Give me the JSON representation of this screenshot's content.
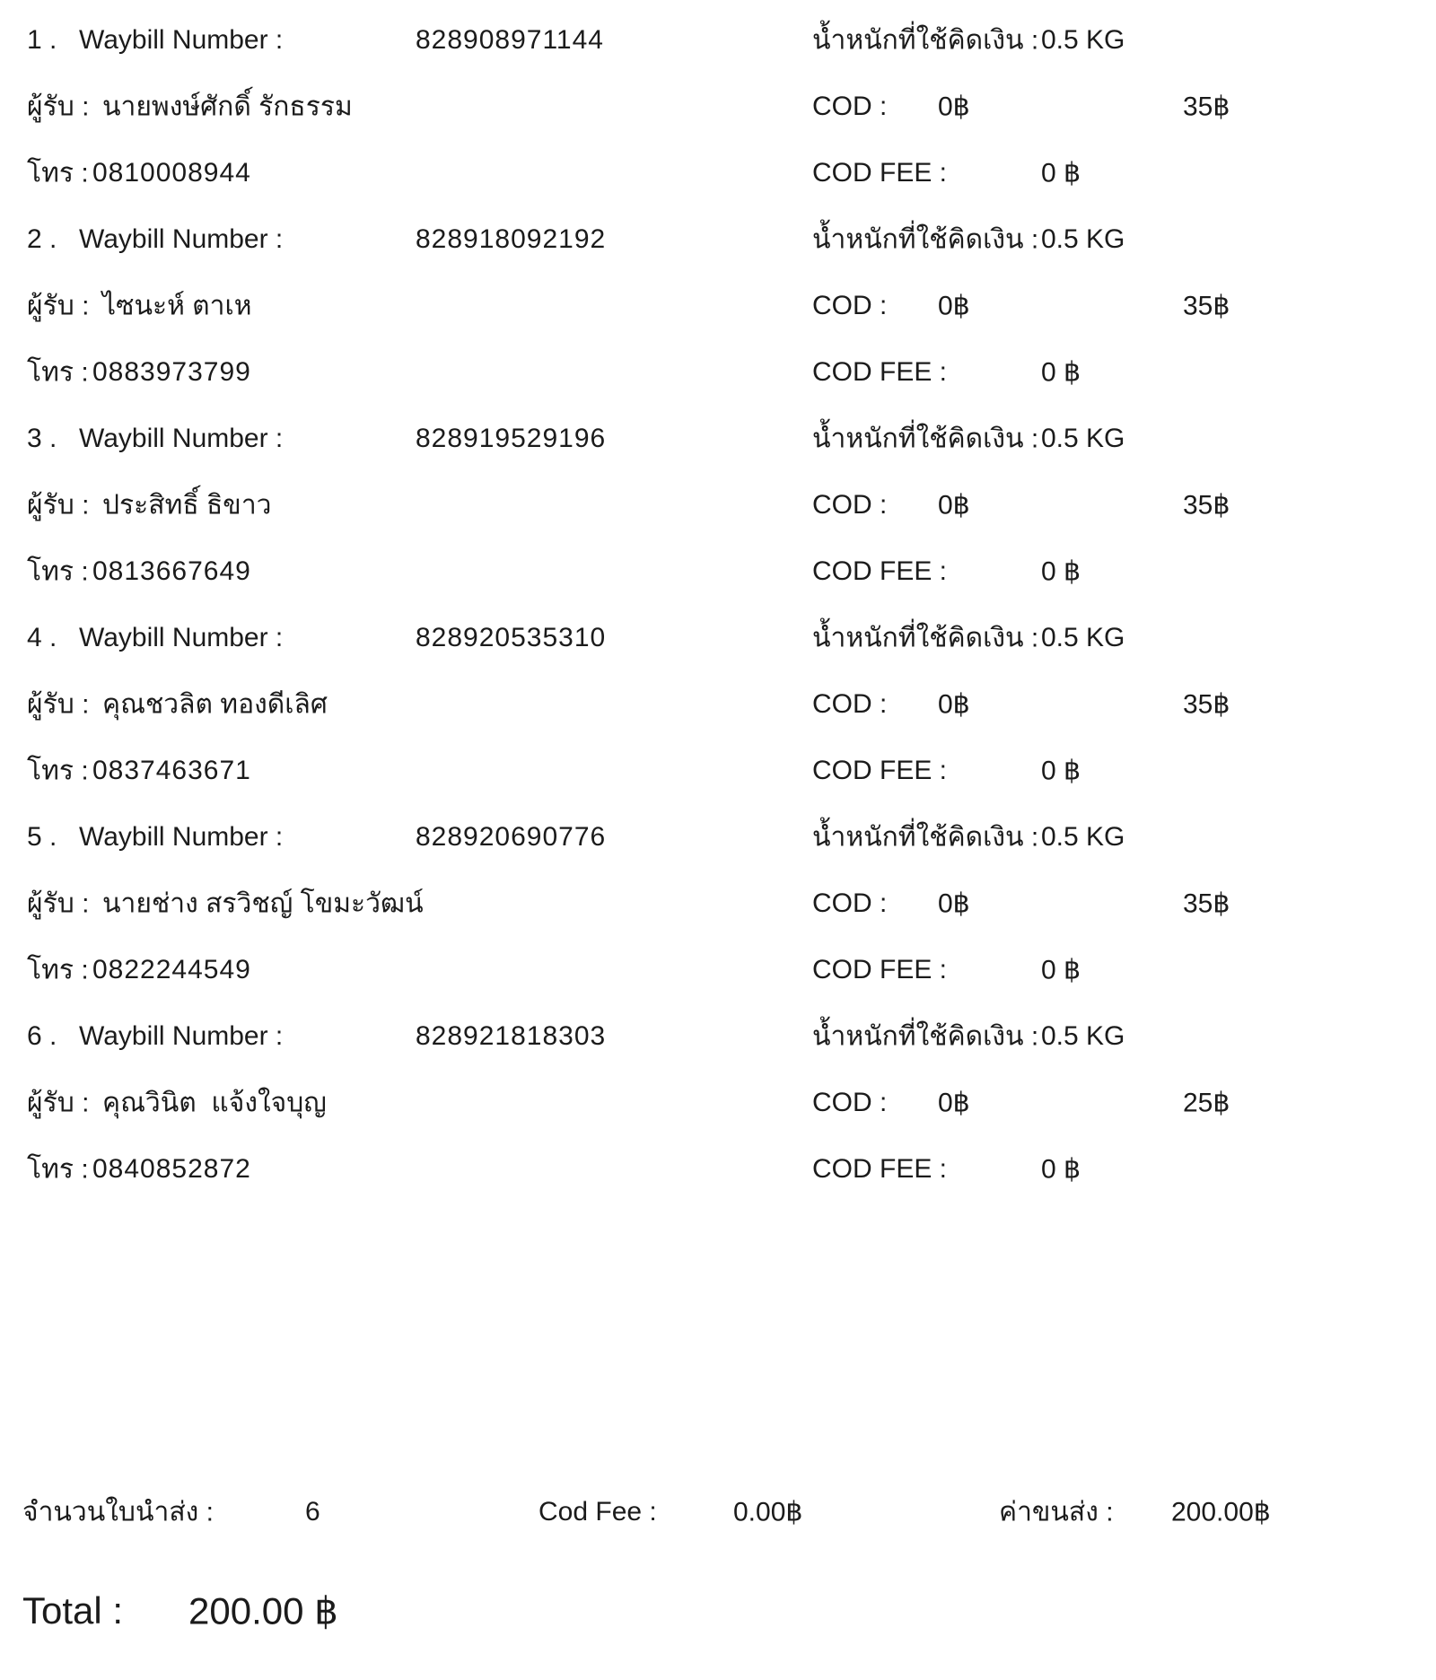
{
  "document": {
    "labels": {
      "waybill": "Waybill Number :",
      "weight": "น้ำหนักที่ใช้คิดเงิน :",
      "recipient": "ผู้รับ :",
      "cod": "COD :",
      "phone": "โทร :",
      "cod_fee": "COD FEE :"
    },
    "entries": [
      {
        "no": "1 .",
        "waybill_number": "828908971144",
        "weight": "0.5 KG",
        "recipient": "นายพงษ์ศักดิ์ รักธรรม",
        "cod": "0฿",
        "price": "35฿",
        "phone": "0810008944",
        "cod_fee": "0 ฿"
      },
      {
        "no": "2 .",
        "waybill_number": "828918092192",
        "weight": "0.5 KG",
        "recipient": "ไซนะห์ ตาเห",
        "cod": "0฿",
        "price": "35฿",
        "phone": "0883973799",
        "cod_fee": "0 ฿"
      },
      {
        "no": "3 .",
        "waybill_number": "828919529196",
        "weight": "0.5 KG",
        "recipient": "ประสิทธิ์ ธิขาว",
        "cod": "0฿",
        "price": "35฿",
        "phone": "0813667649",
        "cod_fee": "0 ฿"
      },
      {
        "no": "4 .",
        "waybill_number": "828920535310",
        "weight": "0.5 KG",
        "recipient": "คุณชวลิต ทองดีเลิศ",
        "cod": "0฿",
        "price": "35฿",
        "phone": "0837463671",
        "cod_fee": "0 ฿"
      },
      {
        "no": "5 .",
        "waybill_number": "828920690776",
        "weight": "0.5 KG",
        "recipient": "นายช่าง สรวิชญ์ โขมะวัฒน์",
        "cod": "0฿",
        "price": "35฿",
        "phone": "0822244549",
        "cod_fee": "0 ฿"
      },
      {
        "no": "6 .",
        "waybill_number": "828921818303",
        "weight": "0.5 KG",
        "recipient": "คุณวินิต  แจ้งใจบุญ",
        "cod": "0฿",
        "price": "25฿",
        "phone": "0840852872",
        "cod_fee": "0 ฿"
      }
    ],
    "summary": {
      "count_label": "จำนวนใบนำส่ง :",
      "count_value": "6",
      "cod_fee_label": "Cod Fee :",
      "cod_fee_value": "0.00฿",
      "shipping_label": "ค่าขนส่ง :",
      "shipping_value": "200.00฿"
    },
    "total": {
      "label": "Total :",
      "value": "200.00 ฿"
    },
    "colors": {
      "text": "#1b1b1b",
      "background": "#ffffff"
    }
  }
}
